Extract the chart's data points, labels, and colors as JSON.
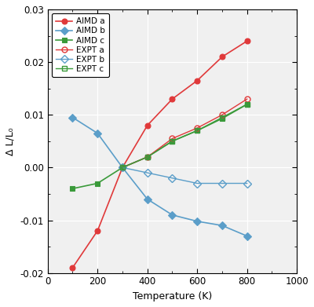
{
  "title": "",
  "xlabel": "Temperature (K)",
  "ylabel": "Δ L/L₀",
  "xlim": [
    0,
    1000
  ],
  "ylim": [
    -0.02,
    0.03
  ],
  "yticks": [
    -0.02,
    -0.01,
    0.0,
    0.01,
    0.02,
    0.03
  ],
  "xticks": [
    0,
    200,
    400,
    600,
    800,
    1000
  ],
  "AIMD_a_x": [
    100,
    200,
    300,
    400,
    500,
    600,
    700,
    800
  ],
  "AIMD_a_y": [
    -0.019,
    -0.012,
    0.0,
    0.008,
    0.013,
    0.0165,
    0.021,
    0.024
  ],
  "AIMD_b_x": [
    100,
    200,
    300,
    400,
    500,
    600,
    700,
    800
  ],
  "AIMD_b_y": [
    0.0095,
    0.0065,
    0.0,
    -0.006,
    -0.009,
    -0.0102,
    -0.011,
    -0.013
  ],
  "AIMD_c_x": [
    100,
    200,
    300,
    400,
    500,
    600,
    700,
    800
  ],
  "AIMD_c_y": [
    -0.004,
    -0.003,
    0.0,
    0.002,
    0.005,
    0.007,
    0.0093,
    0.012
  ],
  "EXPT_a_x": [
    300,
    400,
    500,
    600,
    700,
    800
  ],
  "EXPT_a_y": [
    0.0,
    0.002,
    0.0055,
    0.0075,
    0.01,
    0.013
  ],
  "EXPT_b_x": [
    300,
    400,
    500,
    600,
    700,
    800
  ],
  "EXPT_b_y": [
    0.0,
    -0.001,
    -0.002,
    -0.003,
    -0.003,
    -0.003
  ],
  "EXPT_c_x": [
    300,
    400,
    500,
    600,
    700,
    800
  ],
  "EXPT_c_y": [
    0.0,
    0.002,
    0.005,
    0.007,
    0.0095,
    0.012
  ],
  "color_red": "#e0393a",
  "color_blue": "#5b9ec9",
  "color_green": "#3a9a3a",
  "plot_bg": "#f0f0f0",
  "fig_bg": "#ffffff"
}
